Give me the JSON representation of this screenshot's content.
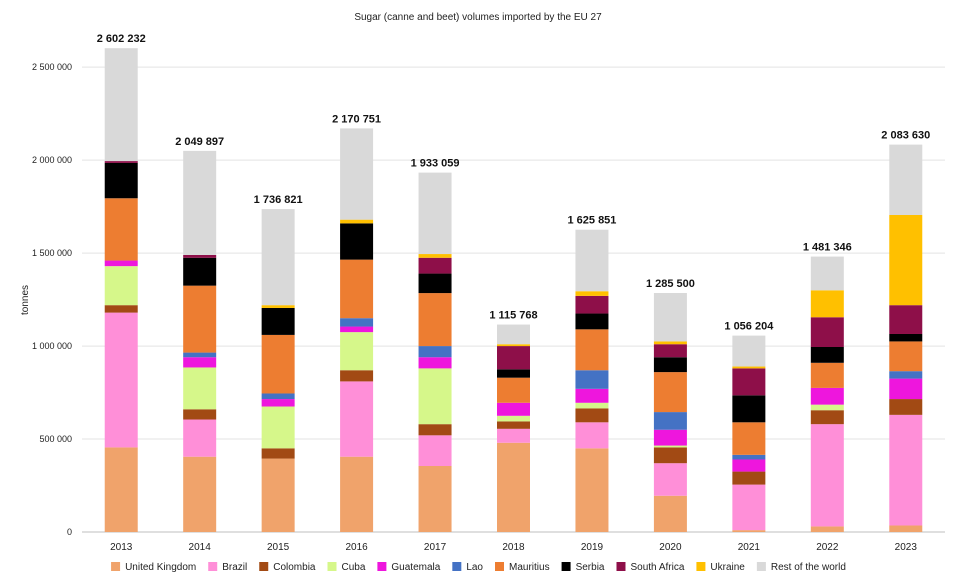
{
  "chart_data": {
    "type": "bar",
    "stacked": true,
    "title": "Sugar (canne and beet)  volumes imported by the EU 27",
    "xlabel": "",
    "ylabel": "tonnes",
    "ylim": [
      0,
      2700000
    ],
    "y_ticks": [
      0,
      500000,
      1000000,
      1500000,
      2000000,
      2500000
    ],
    "y_tick_labels": [
      "0",
      "500 000",
      "1 000 000",
      "1 500 000",
      "2 000 000",
      "2 500 000"
    ],
    "grid": true,
    "legend_position": "bottom",
    "categories": [
      "2013",
      "2014",
      "2015",
      "2016",
      "2017",
      "2018",
      "2019",
      "2020",
      "2021",
      "2022",
      "2023"
    ],
    "totals": [
      2602232,
      2049897,
      1736821,
      2170751,
      1933059,
      1115768,
      1625851,
      1285500,
      1056204,
      1481346,
      2083630
    ],
    "total_labels": [
      "2 602 232",
      "2 049 897",
      "1 736 821",
      "2 170 751",
      "1 933 059",
      "1 115 768",
      "1 625 851",
      "1 285 500",
      "1 056 204",
      "1 481 346",
      "2 083 630"
    ],
    "series": [
      {
        "name": "United Kingdom",
        "color": "#F0A36B",
        "values": [
          455000,
          405000,
          395000,
          405000,
          355000,
          480000,
          450000,
          195000,
          10000,
          30000,
          35000
        ]
      },
      {
        "name": "Brazil",
        "color": "#FF8FD8",
        "values": [
          725000,
          200000,
          0,
          405000,
          165000,
          75000,
          140000,
          175000,
          245000,
          550000,
          595000
        ]
      },
      {
        "name": "Colombia",
        "color": "#A24A14",
        "values": [
          40000,
          55000,
          55000,
          60000,
          60000,
          40000,
          75000,
          85000,
          70000,
          75000,
          85000
        ]
      },
      {
        "name": "Cuba",
        "color": "#D6F78A",
        "values": [
          210000,
          225000,
          225000,
          205000,
          300000,
          30000,
          30000,
          10000,
          0,
          30000,
          0
        ]
      },
      {
        "name": "Guatemala",
        "color": "#EE16DD",
        "values": [
          30000,
          55000,
          40000,
          30000,
          60000,
          70000,
          75000,
          85000,
          65000,
          90000,
          110000
        ]
      },
      {
        "name": "Lao",
        "color": "#4472C4",
        "values": [
          0,
          25000,
          30000,
          45000,
          60000,
          0,
          100000,
          95000,
          25000,
          0,
          40000
        ]
      },
      {
        "name": "Mauritius",
        "color": "#ED7D31",
        "values": [
          335000,
          360000,
          315000,
          315000,
          285000,
          135000,
          220000,
          215000,
          175000,
          135000,
          160000
        ]
      },
      {
        "name": "Serbia",
        "color": "#000000",
        "values": [
          190000,
          150000,
          145000,
          195000,
          105000,
          45000,
          85000,
          80000,
          145000,
          85000,
          40000
        ]
      },
      {
        "name": "South Africa",
        "color": "#8E0F49",
        "values": [
          10000,
          15000,
          0,
          0,
          85000,
          125000,
          95000,
          70000,
          145000,
          160000,
          155000
        ]
      },
      {
        "name": "Ukraine",
        "color": "#FFC000",
        "values": [
          0,
          0,
          15000,
          20000,
          20000,
          10000,
          25000,
          15000,
          10000,
          145000,
          485000
        ]
      },
      {
        "name": "Rest of the world",
        "color": "#D9D9D9",
        "values": [
          607232,
          559897,
          516821,
          490751,
          438059,
          105768,
          330851,
          260500,
          166204,
          181346,
          378630
        ]
      }
    ]
  }
}
